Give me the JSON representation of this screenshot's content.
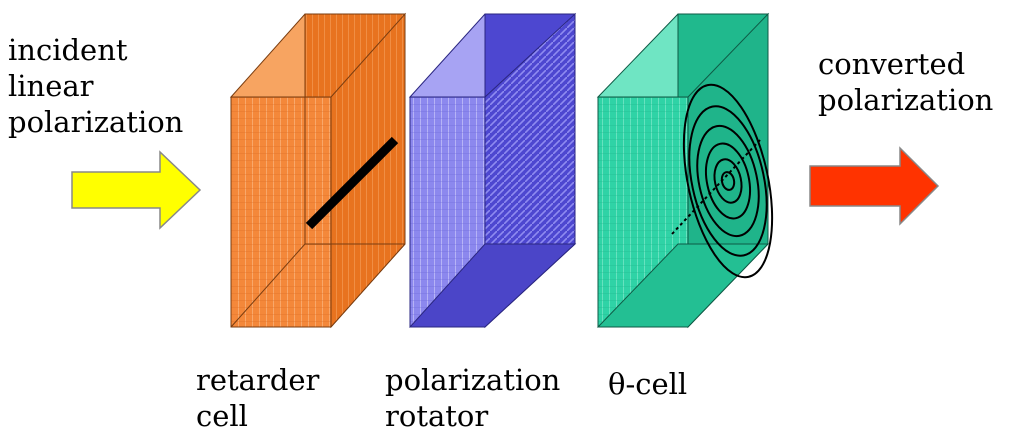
{
  "labels": {
    "incident": [
      "incident",
      "linear",
      "polarization"
    ],
    "converted": [
      "converted",
      "polarization"
    ],
    "retarder": [
      "retarder",
      "cell"
    ],
    "rotator": [
      "polarization",
      "rotator"
    ],
    "theta": "θ-cell"
  },
  "colors": {
    "incident_arrow": "#ffff00",
    "converted_arrow": "#ff3300",
    "retarder_cell": "#f4883a",
    "polarization_rotator": "#5b55d9",
    "theta_cell": "#2fd3a6"
  }
}
